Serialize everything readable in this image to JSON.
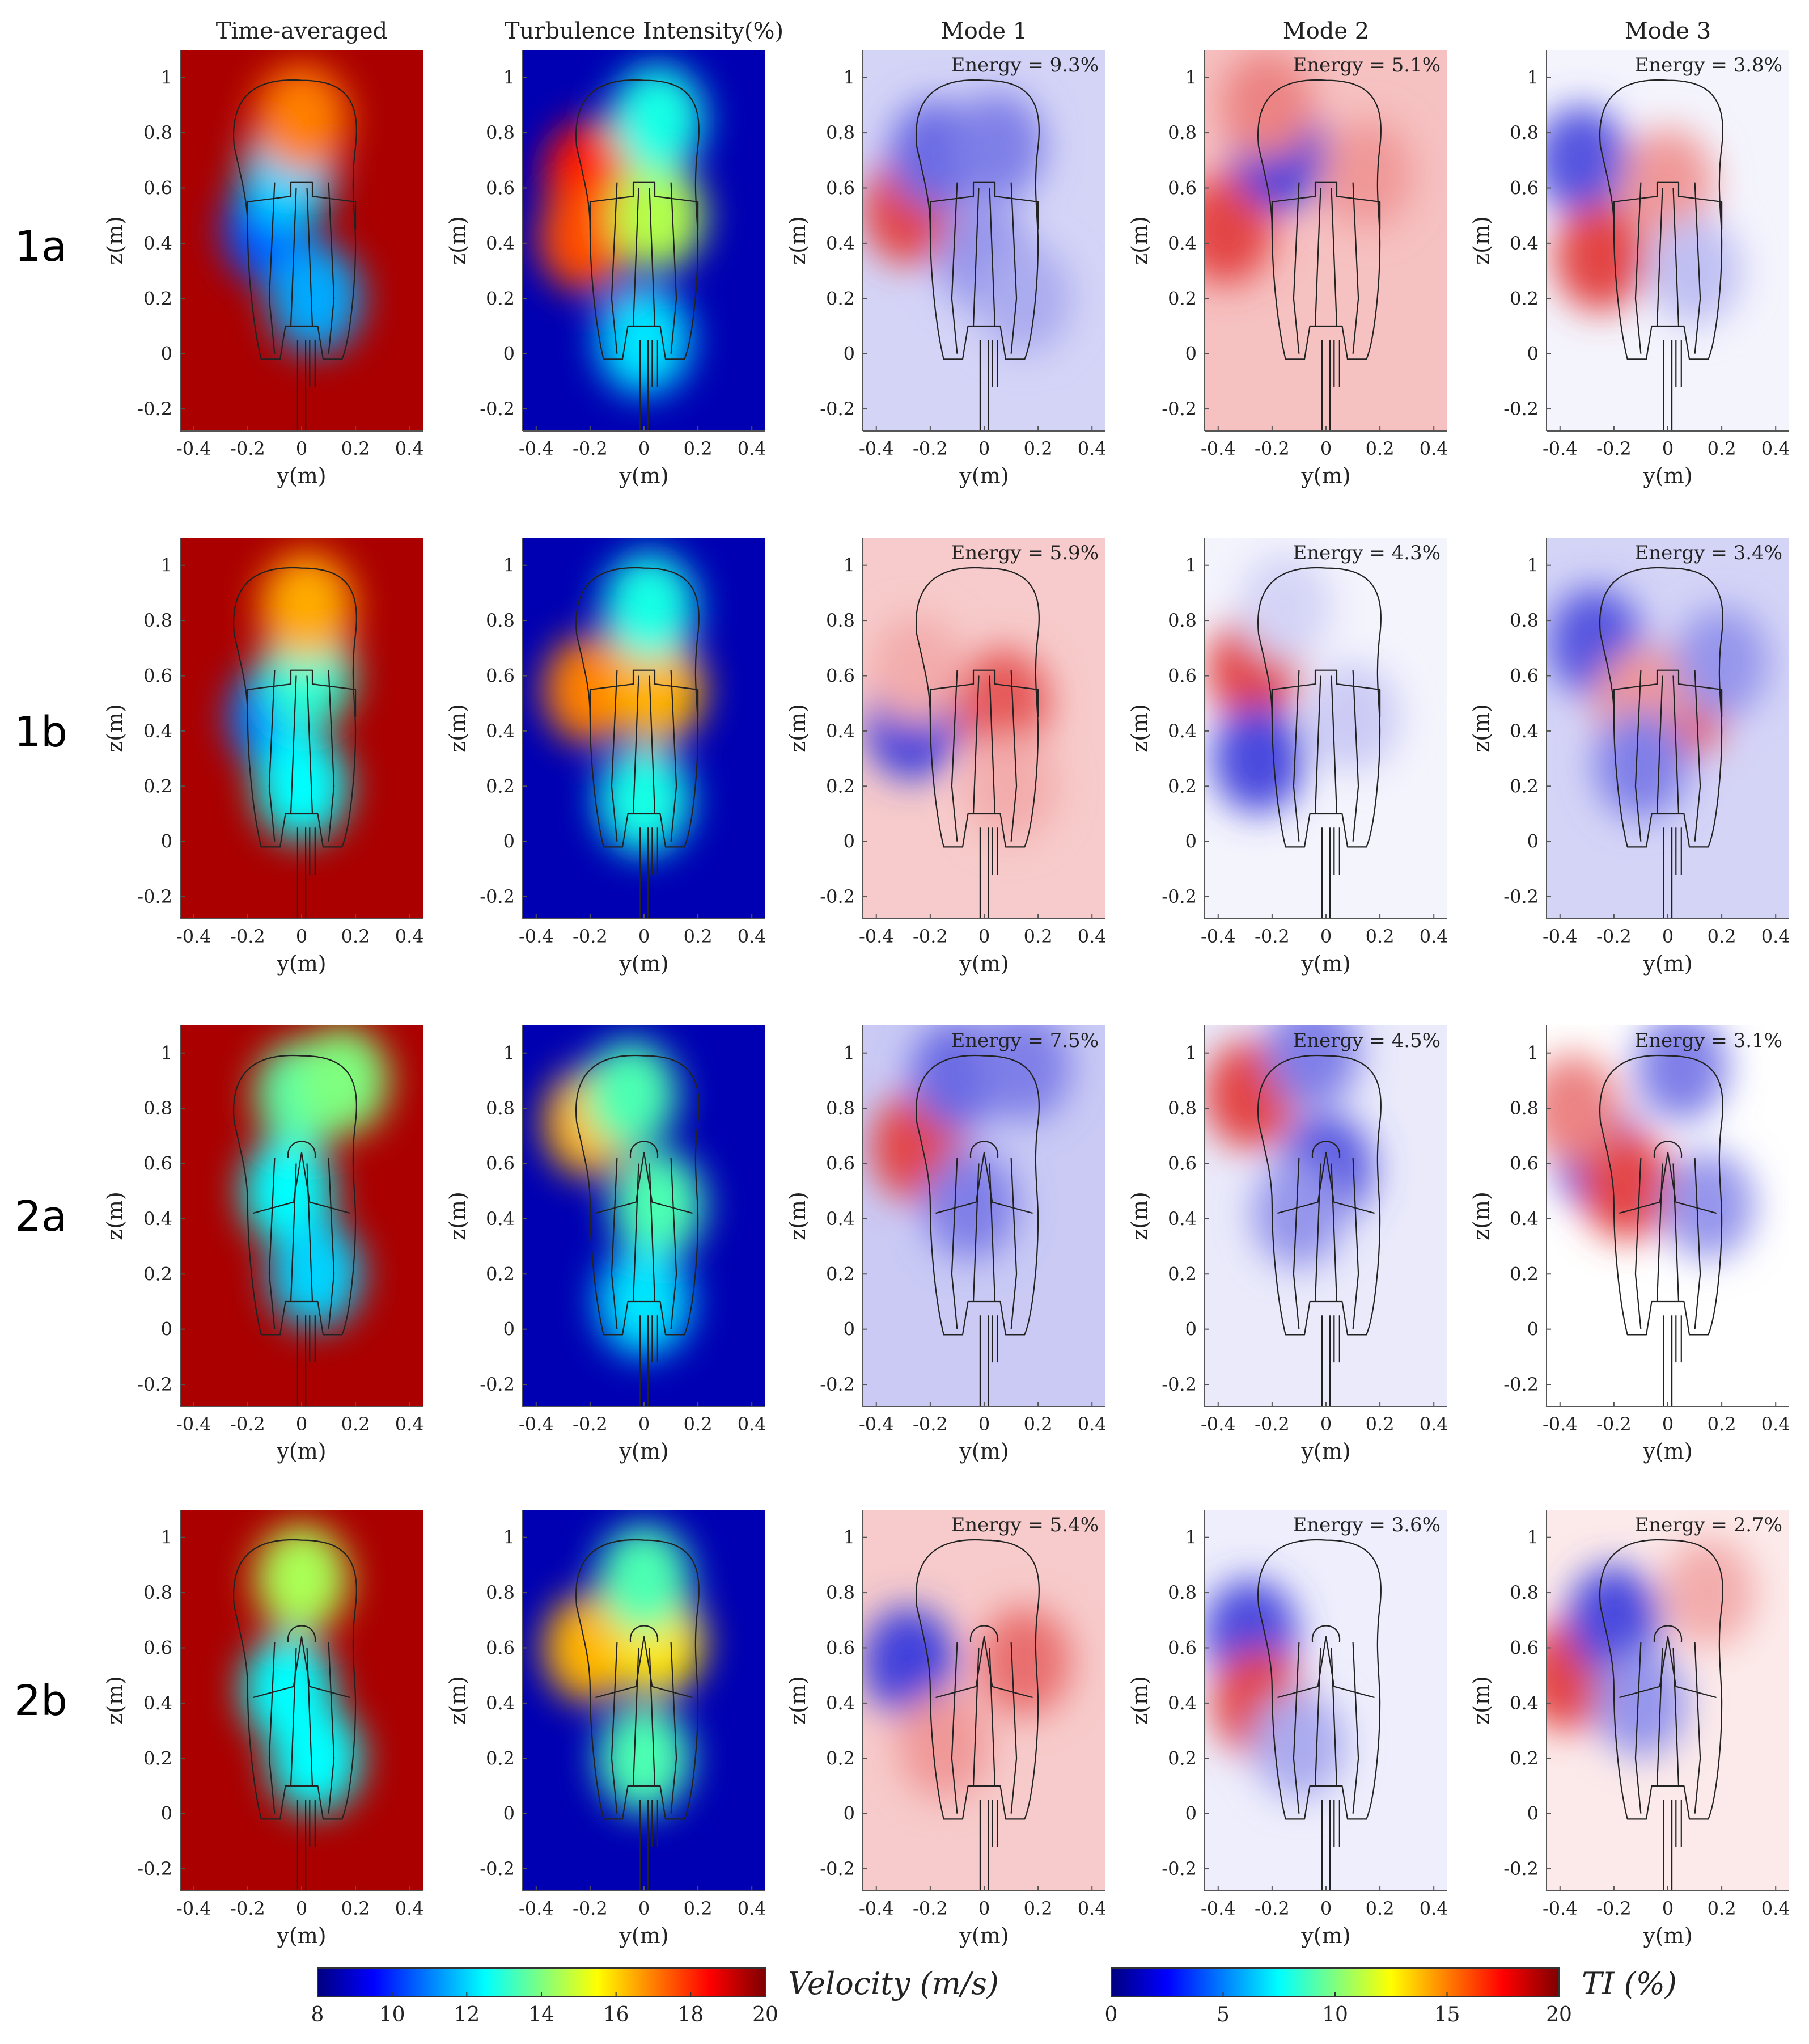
{
  "figure": {
    "columns": [
      "Time-averaged",
      "Turbulence Intensity(%)",
      "Mode 1",
      "Mode 2",
      "Mode 3"
    ],
    "rows": [
      "1a",
      "1b",
      "2a",
      "2b"
    ]
  },
  "colors": {
    "jet": [
      "#00007f",
      "#0000ff",
      "#007fff",
      "#00ffff",
      "#7fff7f",
      "#ffff00",
      "#ff7f00",
      "#ff0000",
      "#7f0000"
    ],
    "mode_positive": "#e03030",
    "mode_negative": "#2a2ad8",
    "outline": "#222222"
  },
  "chart_data": [
    {
      "row": "1a",
      "panels": [
        {
          "column": "Time-averaged",
          "type": "heatmap",
          "quantity": "Velocity (m/s)",
          "xlabel": "y(m)",
          "ylabel": "z(m)",
          "xlim": [
            -0.45,
            0.45
          ],
          "ylim": [
            -0.28,
            1.1
          ],
          "background_value": 19.5,
          "features": [
            {
              "y": -0.12,
              "z": 0.45,
              "value": 10.5
            },
            {
              "y": -0.05,
              "z": 0.65,
              "value": 12
            },
            {
              "y": 0.05,
              "z": 0.2,
              "value": 11.5
            },
            {
              "y": 0.0,
              "z": 0.85,
              "value": 17
            }
          ]
        },
        {
          "column": "Turbulence Intensity(%)",
          "type": "heatmap",
          "quantity": "TI (%)",
          "xlabel": "y(m)",
          "ylabel": "z(m)",
          "xlim": [
            -0.45,
            0.45
          ],
          "ylim": [
            -0.28,
            1.1
          ],
          "background_value": 1,
          "features": [
            {
              "y": -0.2,
              "z": 0.65,
              "value": 17
            },
            {
              "y": -0.22,
              "z": 0.42,
              "value": 16
            },
            {
              "y": 0.05,
              "z": 0.5,
              "value": 11
            },
            {
              "y": 0.05,
              "z": 0.85,
              "value": 8
            },
            {
              "y": 0.0,
              "z": 0.05,
              "value": 7
            }
          ]
        },
        {
          "column": "Mode 1",
          "type": "heatmap",
          "quantity": "mode",
          "energy_percent": 9.3,
          "xlabel": "y(m)",
          "ylabel": "z(m)",
          "xlim": [
            -0.45,
            0.45
          ],
          "ylim": [
            -0.28,
            1.1
          ],
          "background_value": -0.2,
          "features": [
            {
              "y": -0.28,
              "z": 0.52,
              "value": 0.9
            },
            {
              "y": -0.18,
              "z": 0.72,
              "value": -0.7
            },
            {
              "y": 0.05,
              "z": 0.75,
              "value": -0.6
            },
            {
              "y": 0.0,
              "z": 0.35,
              "value": -0.5
            },
            {
              "y": 0.15,
              "z": 0.2,
              "value": -0.4
            }
          ]
        },
        {
          "column": "Mode 2",
          "type": "heatmap",
          "quantity": "mode",
          "energy_percent": 5.1,
          "xlabel": "y(m)",
          "ylabel": "z(m)",
          "xlim": [
            -0.45,
            0.45
          ],
          "ylim": [
            -0.28,
            1.1
          ],
          "background_value": 0.3,
          "features": [
            {
              "y": -0.37,
              "z": 0.45,
              "value": 0.9
            },
            {
              "y": -0.17,
              "z": 0.72,
              "value": -0.9
            },
            {
              "y": -0.22,
              "z": 0.9,
              "value": 0.6
            },
            {
              "y": 0.15,
              "z": 0.65,
              "value": 0.5
            }
          ]
        },
        {
          "column": "Mode 3",
          "type": "heatmap",
          "quantity": "mode",
          "energy_percent": 3.8,
          "xlabel": "y(m)",
          "ylabel": "z(m)",
          "xlim": [
            -0.45,
            0.45
          ],
          "ylim": [
            -0.28,
            1.1
          ],
          "background_value": -0.05,
          "features": [
            {
              "y": -0.32,
              "z": 0.7,
              "value": -0.8
            },
            {
              "y": -0.25,
              "z": 0.35,
              "value": 0.9
            },
            {
              "y": 0.0,
              "z": 0.62,
              "value": 0.5
            },
            {
              "y": 0.1,
              "z": 0.3,
              "value": -0.3
            }
          ]
        }
      ]
    },
    {
      "row": "1b",
      "panels": [
        {
          "column": "Time-averaged",
          "type": "heatmap",
          "quantity": "Velocity (m/s)",
          "xlabel": "y(m)",
          "ylabel": "z(m)",
          "xlim": [
            -0.45,
            0.45
          ],
          "ylim": [
            -0.28,
            1.1
          ],
          "background_value": 19.5,
          "features": [
            {
              "y": -0.1,
              "z": 0.45,
              "value": 11
            },
            {
              "y": 0.02,
              "z": 0.6,
              "value": 13
            },
            {
              "y": 0.0,
              "z": 0.2,
              "value": 12.5
            },
            {
              "y": 0.02,
              "z": 0.85,
              "value": 16.5
            }
          ]
        },
        {
          "column": "Turbulence Intensity(%)",
          "type": "heatmap",
          "quantity": "TI (%)",
          "xlabel": "y(m)",
          "ylabel": "z(m)",
          "xlim": [
            -0.45,
            0.45
          ],
          "ylim": [
            -0.28,
            1.1
          ],
          "background_value": 1,
          "features": [
            {
              "y": -0.2,
              "z": 0.55,
              "value": 15
            },
            {
              "y": 0.05,
              "z": 0.55,
              "value": 14
            },
            {
              "y": 0.02,
              "z": 0.85,
              "value": 8
            },
            {
              "y": 0.0,
              "z": 0.15,
              "value": 8
            }
          ]
        },
        {
          "column": "Mode 1",
          "type": "heatmap",
          "quantity": "mode",
          "energy_percent": 5.9,
          "xlabel": "y(m)",
          "ylabel": "z(m)",
          "xlim": [
            -0.45,
            0.45
          ],
          "ylim": [
            -0.28,
            1.1
          ],
          "background_value": 0.25,
          "features": [
            {
              "y": -0.27,
              "z": 0.42,
              "value": -0.9
            },
            {
              "y": 0.07,
              "z": 0.5,
              "value": 0.8
            },
            {
              "y": -0.25,
              "z": 0.62,
              "value": 0.4
            },
            {
              "y": 0.1,
              "z": 0.2,
              "value": 0.4
            }
          ]
        },
        {
          "column": "Mode 2",
          "type": "heatmap",
          "quantity": "mode",
          "energy_percent": 4.3,
          "xlabel": "y(m)",
          "ylabel": "z(m)",
          "xlim": [
            -0.45,
            0.45
          ],
          "ylim": [
            -0.28,
            1.1
          ],
          "background_value": -0.05,
          "features": [
            {
              "y": -0.27,
              "z": 0.62,
              "value": 0.9
            },
            {
              "y": -0.25,
              "z": 0.3,
              "value": -0.85
            },
            {
              "y": 0.1,
              "z": 0.45,
              "value": -0.25
            },
            {
              "y": -0.15,
              "z": 0.85,
              "value": -0.2
            }
          ]
        },
        {
          "column": "Mode 3",
          "type": "heatmap",
          "quantity": "mode",
          "energy_percent": 3.4,
          "xlabel": "y(m)",
          "ylabel": "z(m)",
          "xlim": [
            -0.45,
            0.45
          ],
          "ylim": [
            -0.28,
            1.1
          ],
          "background_value": -0.2,
          "features": [
            {
              "y": -0.27,
              "z": 0.72,
              "value": -0.8
            },
            {
              "y": 0.05,
              "z": 0.5,
              "value": 0.8
            },
            {
              "y": -0.1,
              "z": 0.5,
              "value": 0.5
            },
            {
              "y": -0.1,
              "z": 0.28,
              "value": -0.6
            },
            {
              "y": 0.2,
              "z": 0.65,
              "value": -0.5
            }
          ]
        }
      ]
    },
    {
      "row": "2a",
      "panels": [
        {
          "column": "Time-averaged",
          "type": "heatmap",
          "quantity": "Velocity (m/s)",
          "xlabel": "y(m)",
          "ylabel": "z(m)",
          "xlim": [
            -0.45,
            0.45
          ],
          "ylim": [
            -0.28,
            1.1
          ],
          "background_value": 19.5,
          "features": [
            {
              "y": -0.05,
              "z": 0.5,
              "value": 12.5
            },
            {
              "y": 0.05,
              "z": 0.2,
              "value": 12
            },
            {
              "y": 0.0,
              "z": 0.85,
              "value": 13.5
            },
            {
              "y": 0.15,
              "z": 0.9,
              "value": 14
            }
          ]
        },
        {
          "column": "Turbulence Intensity(%)",
          "type": "heatmap",
          "quantity": "TI (%)",
          "xlabel": "y(m)",
          "ylabel": "z(m)",
          "xlim": [
            -0.45,
            0.45
          ],
          "ylim": [
            -0.28,
            1.1
          ],
          "background_value": 1,
          "features": [
            {
              "y": -0.2,
              "z": 0.75,
              "value": 14
            },
            {
              "y": -0.05,
              "z": 0.85,
              "value": 9
            },
            {
              "y": 0.05,
              "z": 0.45,
              "value": 9
            },
            {
              "y": 0.0,
              "z": 0.1,
              "value": 7
            }
          ]
        },
        {
          "column": "Mode 1",
          "type": "heatmap",
          "quantity": "mode",
          "energy_percent": 7.5,
          "xlabel": "y(m)",
          "ylabel": "z(m)",
          "xlim": [
            -0.45,
            0.45
          ],
          "ylim": [
            -0.28,
            1.1
          ],
          "background_value": -0.25,
          "features": [
            {
              "y": -0.25,
              "z": 0.66,
              "value": 0.9
            },
            {
              "y": -0.1,
              "z": 0.92,
              "value": -0.7
            },
            {
              "y": 0.15,
              "z": 0.95,
              "value": -0.6
            },
            {
              "y": -0.05,
              "z": 0.45,
              "value": -0.6
            }
          ]
        },
        {
          "column": "Mode 2",
          "type": "heatmap",
          "quantity": "mode",
          "energy_percent": 4.5,
          "xlabel": "y(m)",
          "ylabel": "z(m)",
          "xlim": [
            -0.45,
            0.45
          ],
          "ylim": [
            -0.28,
            1.1
          ],
          "background_value": -0.1,
          "features": [
            {
              "y": -0.28,
              "z": 0.85,
              "value": 0.9
            },
            {
              "y": 0.0,
              "z": 0.58,
              "value": -0.8
            },
            {
              "y": -0.05,
              "z": 1.0,
              "value": -0.6
            },
            {
              "y": -0.1,
              "z": 0.42,
              "value": -0.5
            }
          ]
        },
        {
          "column": "Mode 3",
          "type": "heatmap",
          "quantity": "mode",
          "energy_percent": 3.1,
          "xlabel": "y(m)",
          "ylabel": "z(m)",
          "xlim": [
            -0.45,
            0.45
          ],
          "ylim": [
            -0.28,
            1.1
          ],
          "background_value": 0.0,
          "features": [
            {
              "y": -0.25,
              "z": 0.62,
              "value": -0.8
            },
            {
              "y": -0.15,
              "z": 0.52,
              "value": 0.9
            },
            {
              "y": -0.35,
              "z": 0.8,
              "value": 0.6
            },
            {
              "y": 0.05,
              "z": 0.95,
              "value": -0.6
            },
            {
              "y": 0.15,
              "z": 0.45,
              "value": -0.5
            }
          ]
        }
      ]
    },
    {
      "row": "2b",
      "panels": [
        {
          "column": "Time-averaged",
          "type": "heatmap",
          "quantity": "Velocity (m/s)",
          "xlabel": "y(m)",
          "ylabel": "z(m)",
          "xlim": [
            -0.45,
            0.45
          ],
          "ylim": [
            -0.28,
            1.1
          ],
          "background_value": 19.5,
          "features": [
            {
              "y": -0.05,
              "z": 0.45,
              "value": 12.5
            },
            {
              "y": 0.05,
              "z": 0.2,
              "value": 12.5
            },
            {
              "y": 0.0,
              "z": 0.85,
              "value": 14.5
            }
          ]
        },
        {
          "column": "Turbulence Intensity(%)",
          "type": "heatmap",
          "quantity": "TI (%)",
          "xlabel": "y(m)",
          "ylabel": "z(m)",
          "xlim": [
            -0.45,
            0.45
          ],
          "ylim": [
            -0.28,
            1.1
          ],
          "background_value": 1,
          "features": [
            {
              "y": -0.2,
              "z": 0.6,
              "value": 14
            },
            {
              "y": 0.05,
              "z": 0.62,
              "value": 13
            },
            {
              "y": 0.0,
              "z": 0.85,
              "value": 9
            },
            {
              "y": 0.0,
              "z": 0.2,
              "value": 9
            }
          ]
        },
        {
          "column": "Mode 1",
          "type": "heatmap",
          "quantity": "mode",
          "energy_percent": 5.4,
          "xlabel": "y(m)",
          "ylabel": "z(m)",
          "xlim": [
            -0.45,
            0.45
          ],
          "ylim": [
            -0.28,
            1.1
          ],
          "background_value": 0.25,
          "features": [
            {
              "y": -0.28,
              "z": 0.55,
              "value": -0.9
            },
            {
              "y": 0.15,
              "z": 0.55,
              "value": 0.7
            },
            {
              "y": -0.15,
              "z": 0.25,
              "value": 0.5
            }
          ]
        },
        {
          "column": "Mode 2",
          "type": "heatmap",
          "quantity": "mode",
          "energy_percent": 3.6,
          "xlabel": "y(m)",
          "ylabel": "z(m)",
          "xlim": [
            -0.45,
            0.45
          ],
          "ylim": [
            -0.28,
            1.1
          ],
          "background_value": -0.08,
          "features": [
            {
              "y": -0.28,
              "z": 0.65,
              "value": -0.85
            },
            {
              "y": -0.25,
              "z": 0.4,
              "value": 0.9
            },
            {
              "y": -0.1,
              "z": 0.25,
              "value": -0.4
            }
          ]
        },
        {
          "column": "Mode 3",
          "type": "heatmap",
          "quantity": "mode",
          "energy_percent": 2.7,
          "xlabel": "y(m)",
          "ylabel": "z(m)",
          "xlim": [
            -0.45,
            0.45
          ],
          "ylim": [
            -0.28,
            1.1
          ],
          "background_value": 0.1,
          "features": [
            {
              "y": -0.37,
              "z": 0.5,
              "value": 0.9
            },
            {
              "y": -0.2,
              "z": 0.7,
              "value": -0.85
            },
            {
              "y": -0.1,
              "z": 0.4,
              "value": -0.5
            },
            {
              "y": 0.15,
              "z": 0.8,
              "value": 0.4
            }
          ]
        }
      ]
    }
  ],
  "colorbars": [
    {
      "title": "Velocity (m/s)",
      "range": [
        8,
        20
      ],
      "ticks": [
        "8",
        "10",
        "12",
        "14",
        "16",
        "18",
        "20"
      ],
      "tick_values": [
        8,
        10,
        12,
        14,
        16,
        18,
        20
      ]
    },
    {
      "title": "TI (%)",
      "range": [
        0,
        20
      ],
      "ticks": [
        "0",
        "5",
        "10",
        "15",
        "20"
      ],
      "tick_values": [
        0,
        5,
        10,
        15,
        20
      ]
    }
  ],
  "axes": {
    "x_ticks": [
      "-0.4",
      "-0.2",
      "0",
      "0.2",
      "0.4"
    ],
    "x_tick_values": [
      -0.4,
      -0.2,
      0,
      0.2,
      0.4
    ],
    "y_ticks": [
      "1",
      "0.8",
      "0.6",
      "0.4",
      "0.2",
      "0",
      "-0.2"
    ],
    "y_tick_values": [
      1,
      0.8,
      0.6,
      0.4,
      0.2,
      0,
      -0.2
    ]
  }
}
